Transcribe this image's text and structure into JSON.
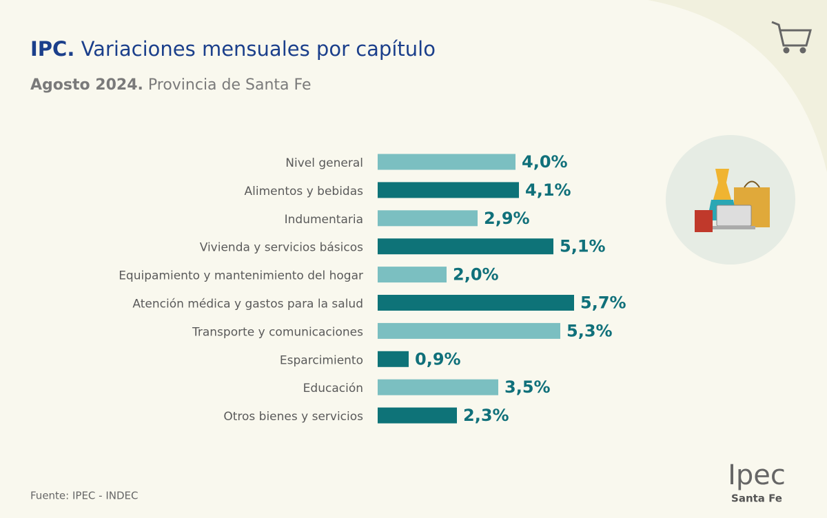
{
  "chart_data": {
    "type": "bar",
    "title_bold": "IPC.",
    "title": "Variaciones mensuales por capítulo",
    "subtitle_bold": "Agosto 2024.",
    "subtitle": "Provincia de Santa Fe",
    "categories": [
      "Nivel general",
      "Alimentos y bebidas",
      "Indumentaria",
      "Vivienda y servicios básicos",
      "Equipamiento y mantenimiento del hogar",
      "Atención médica y gastos para la salud",
      "Transporte y comunicaciones",
      "Esparcimiento",
      "Educación",
      "Otros bienes y servicios"
    ],
    "values": [
      4.0,
      4.1,
      2.9,
      5.1,
      2.0,
      5.7,
      5.3,
      0.9,
      3.5,
      2.3
    ],
    "value_labels": [
      "4,0%",
      "4,1%",
      "2,9%",
      "5,1%",
      "2,0%",
      "5,7%",
      "5,3%",
      "0,9%",
      "3,5%",
      "2,3%"
    ],
    "colors": [
      "#7bbfc1",
      "#0e7378",
      "#7bbfc1",
      "#0e7378",
      "#7bbfc1",
      "#0e7378",
      "#7bbfc1",
      "#0e7378",
      "#7bbfc1",
      "#0e7378"
    ],
    "source": "Fuente: IPEC - INDEC",
    "logo": "Ipec",
    "logo_sub": "Santa Fe"
  }
}
